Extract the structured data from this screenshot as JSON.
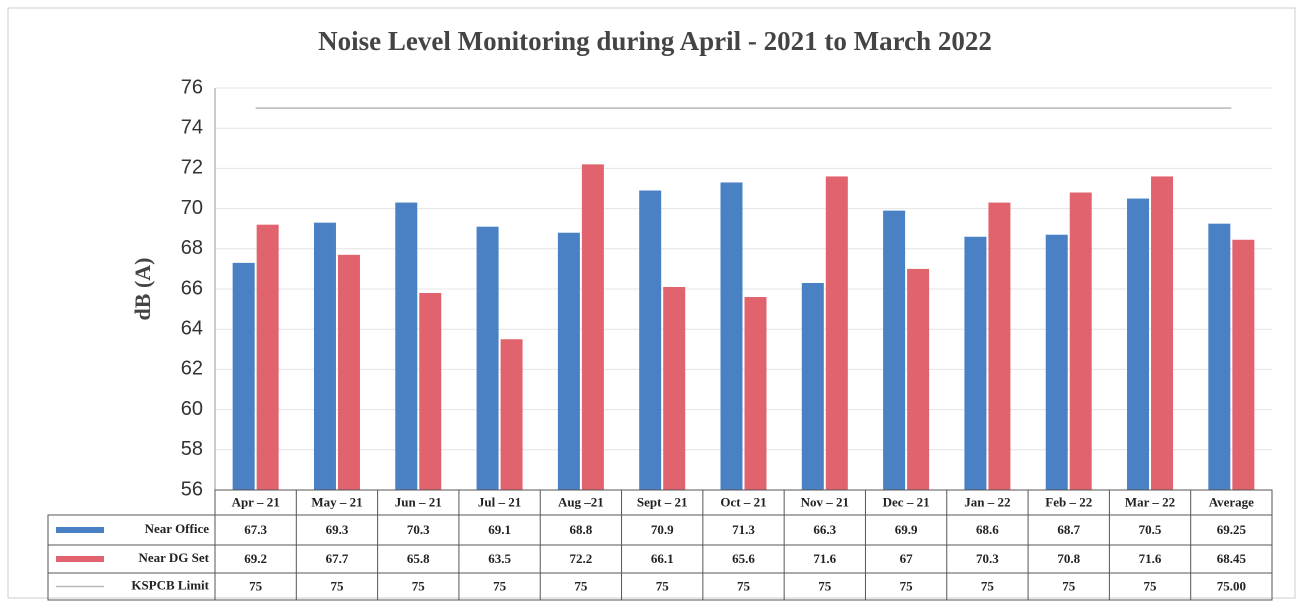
{
  "chart_data": {
    "type": "bar",
    "title": "Noise Level Monitoring during April - 2021 to March 2022",
    "y_label": "dB (A)",
    "categories": [
      "Apr – 21",
      "May – 21",
      "Jun – 21",
      "Jul – 21",
      "Aug –21",
      "Sept – 21",
      "Oct – 21",
      "Nov – 21",
      "Dec – 21",
      "Jan – 22",
      "Feb – 22",
      "Mar – 22",
      "Average"
    ],
    "series": [
      {
        "name": "Near Office",
        "color": "#4a80c4",
        "kind": "bar",
        "values": [
          67.3,
          69.3,
          70.3,
          69.1,
          68.8,
          70.9,
          71.3,
          66.3,
          69.9,
          68.6,
          68.7,
          70.5,
          69.25
        ]
      },
      {
        "name": "Near DG Set",
        "color": "#e0636d",
        "kind": "bar",
        "values": [
          69.2,
          67.7,
          65.8,
          63.5,
          72.2,
          66.1,
          65.6,
          71.6,
          67,
          70.3,
          70.8,
          71.6,
          68.45
        ]
      },
      {
        "name": "KSPCB Limit",
        "color": "#b8b8b8",
        "kind": "line",
        "values": [
          75,
          75,
          75,
          75,
          75,
          75,
          75,
          75,
          75,
          75,
          75,
          75,
          75
        ],
        "value_labels": [
          "75",
          "75",
          "75",
          "75",
          "75",
          "75",
          "75",
          "75",
          "75",
          "75",
          "75",
          "75",
          "75.00"
        ]
      }
    ],
    "ylim": [
      56,
      76
    ],
    "yticks": [
      56,
      58,
      60,
      62,
      64,
      66,
      68,
      70,
      72,
      74,
      76
    ],
    "grid": true
  }
}
